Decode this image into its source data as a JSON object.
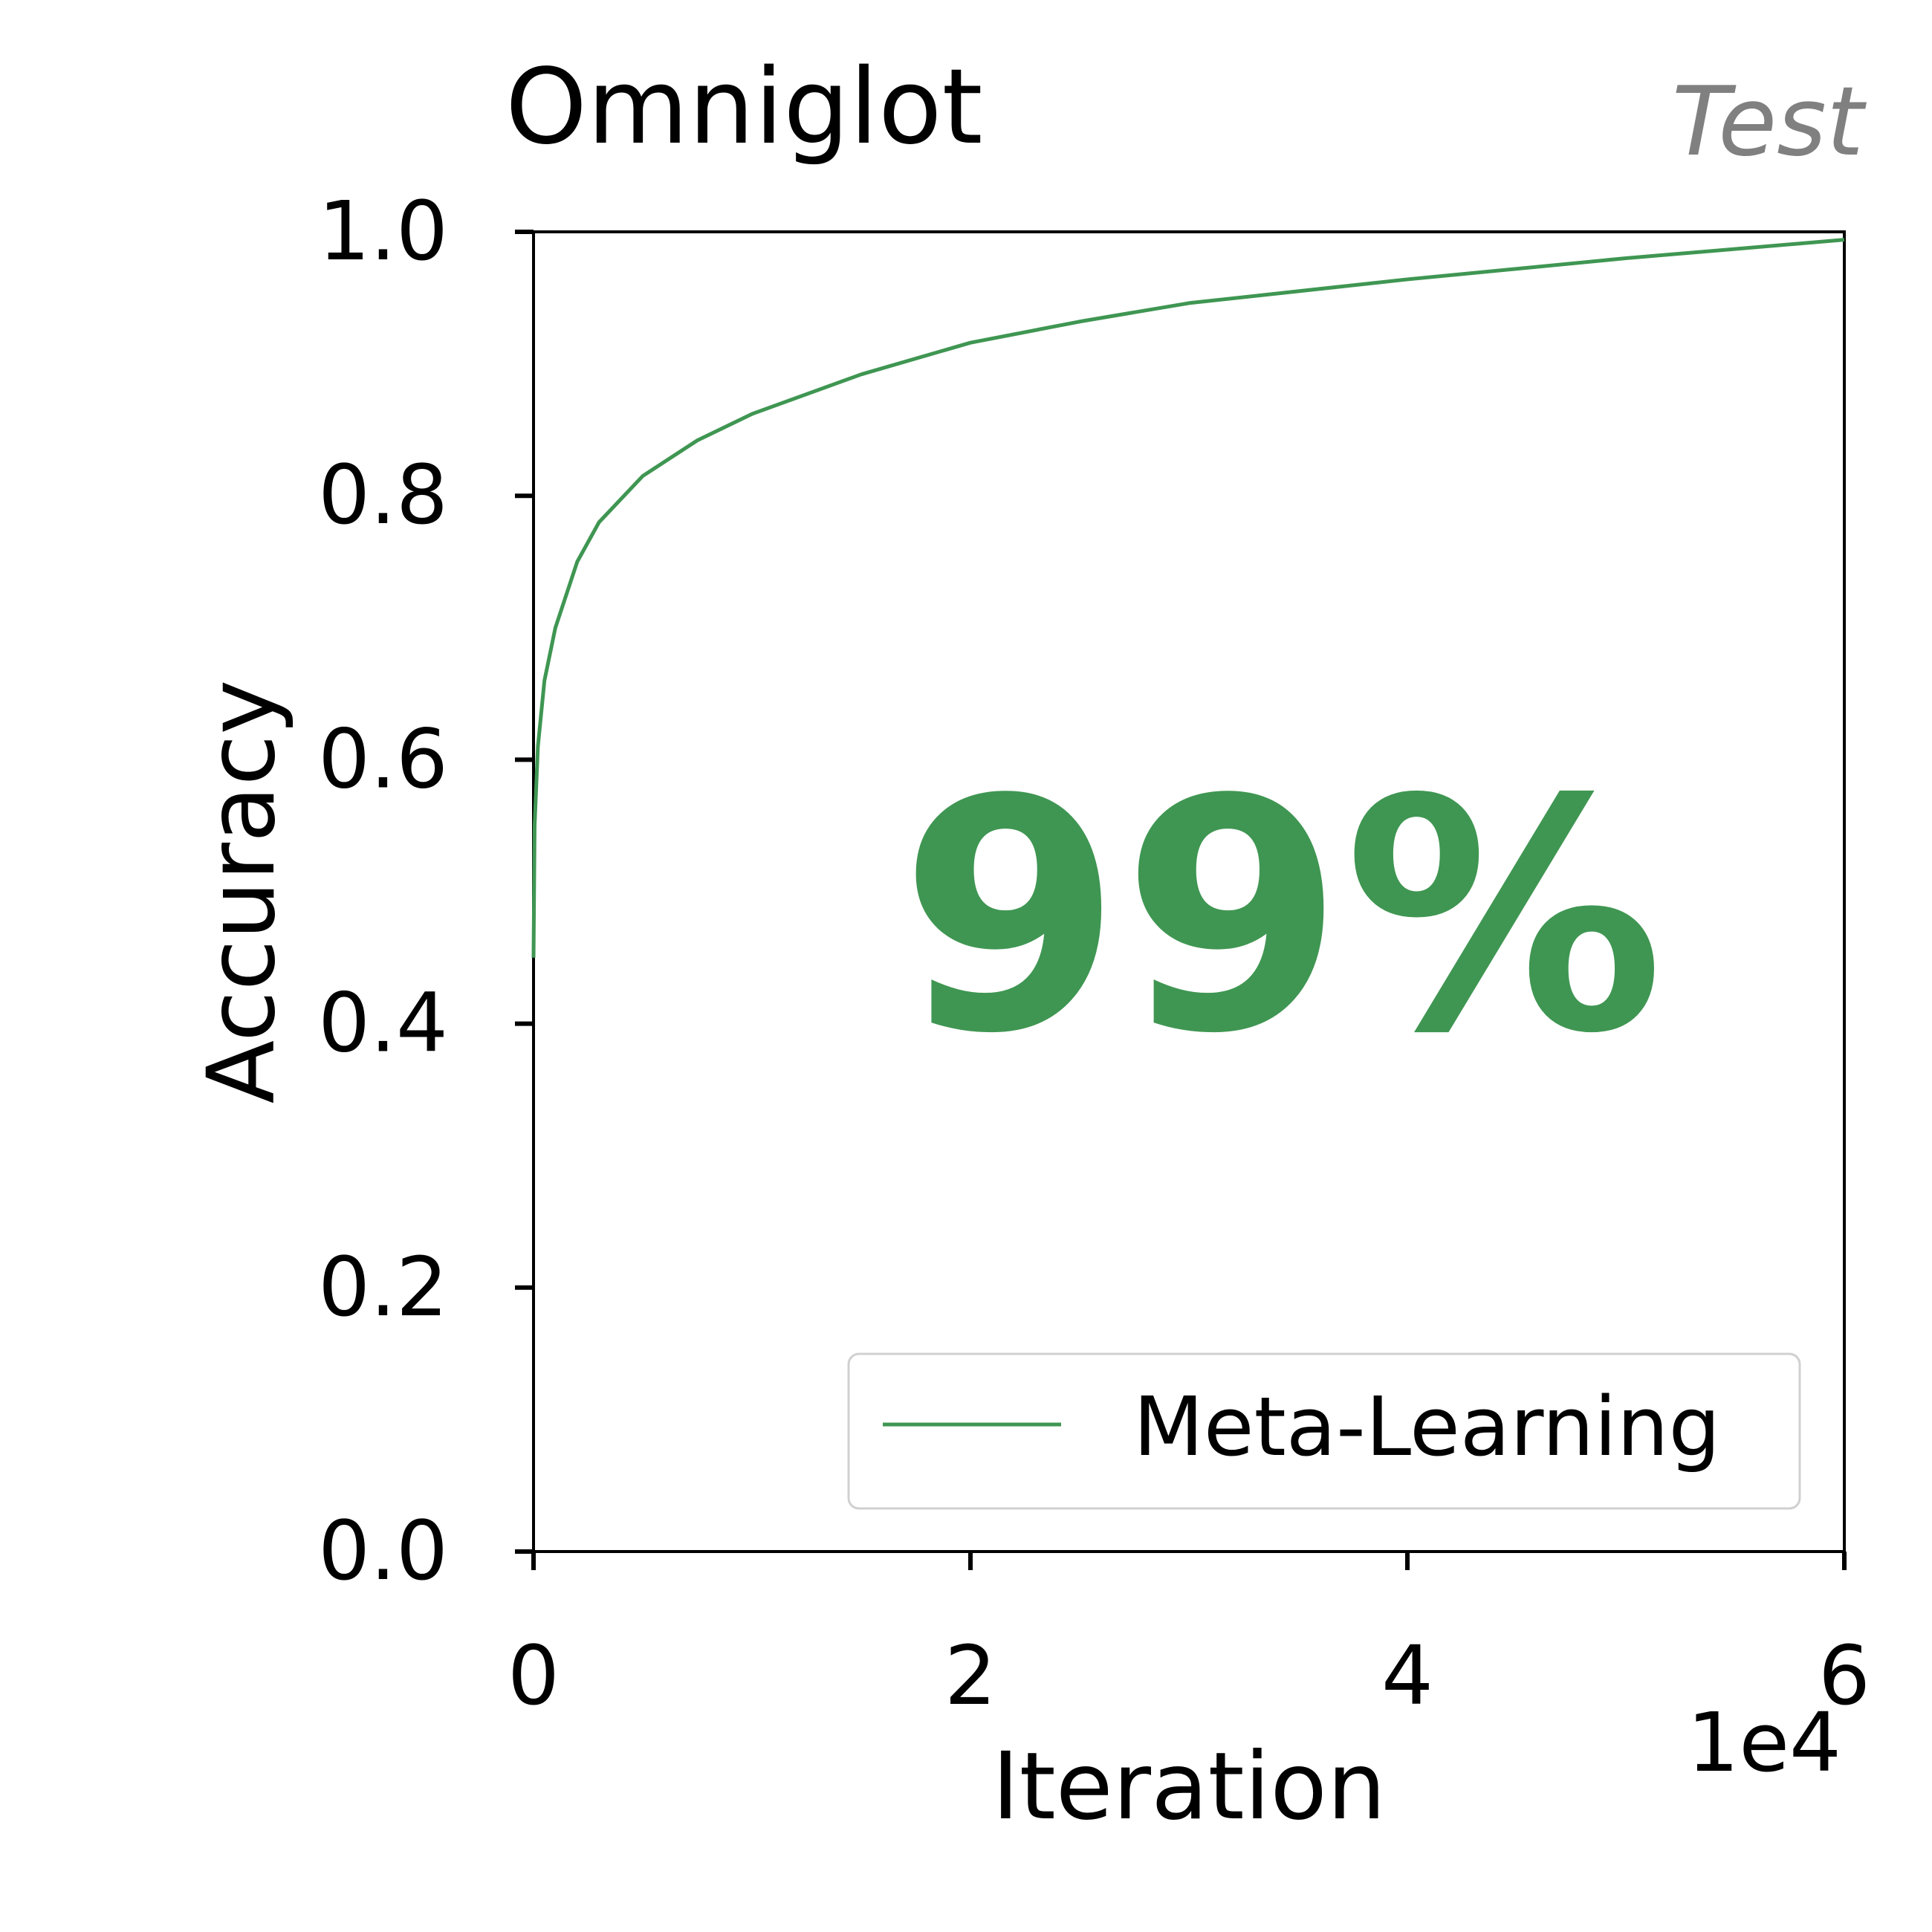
{
  "chart_data": {
    "type": "line",
    "title": "Omniglot",
    "subtitle": "Test",
    "x_label": "Iteration",
    "y_label": "Accuracy",
    "x_offset_label": "1e4",
    "annotation": "99%",
    "x": [
      0,
      0.005,
      0.02,
      0.05,
      0.1,
      0.2,
      0.3,
      0.5,
      0.75,
      1,
      1.5,
      2,
      2.5,
      3,
      4,
      5,
      6
    ],
    "series": [
      {
        "name": "Meta-Learning",
        "color": "#3f9652",
        "values": [
          0.45,
          0.55,
          0.61,
          0.66,
          0.7,
          0.75,
          0.78,
          0.815,
          0.842,
          0.862,
          0.892,
          0.916,
          0.932,
          0.946,
          0.964,
          0.98,
          0.994
        ]
      }
    ],
    "xlim": [
      0,
      6
    ],
    "xticks": [
      0,
      2,
      4,
      6
    ],
    "ylim": [
      0,
      1
    ],
    "yticks": [
      {
        "value": 0,
        "label": "0.0"
      },
      0.2,
      0.4,
      0.6,
      0.8,
      {
        "value": 1,
        "label": "1.0"
      }
    ],
    "grid": false,
    "legend": "lower right"
  }
}
